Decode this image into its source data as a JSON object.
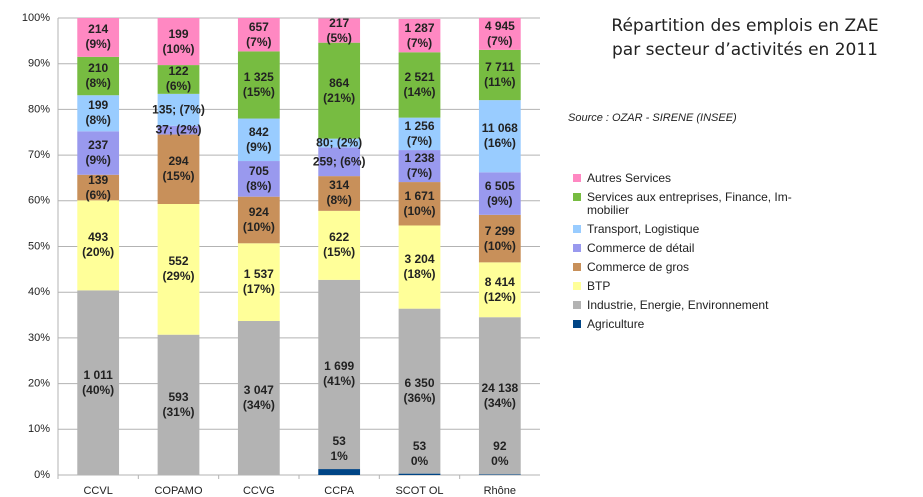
{
  "chart_data": {
    "type": "stacked_bar",
    "title": "Répartition des emplois en ZAE\npar secteur d’activités en 2011",
    "subtitle": "Source : OZAR - SIRENE (INSEE)",
    "categories": [
      "CCVL",
      "COPAMO",
      "CCVG",
      "CCPA",
      "SCOT OL",
      "Rhône"
    ],
    "ylim": [
      0,
      100
    ],
    "yticks": [
      {
        "value": 0,
        "label": "0%"
      },
      {
        "value": 10,
        "label": "10%"
      },
      {
        "value": 20,
        "label": "20%"
      },
      {
        "value": 30,
        "label": "30%"
      },
      {
        "value": 40,
        "label": "40%"
      },
      {
        "value": 50,
        "label": "50%"
      },
      {
        "value": 60,
        "label": "60%"
      },
      {
        "value": 70,
        "label": "70%"
      },
      {
        "value": 80,
        "label": "80%"
      },
      {
        "value": 90,
        "label": "90%"
      },
      {
        "value": 100,
        "label": "100%"
      }
    ],
    "grid": true,
    "legend": "right",
    "series": [
      {
        "name": "Agriculture",
        "color": "#004586",
        "values": [
          null,
          null,
          null,
          1.3,
          0.3,
          0.13
        ],
        "value_labels": [
          null,
          null,
          null,
          "53\n1%",
          "53\n0%",
          "92\n0%"
        ]
      },
      {
        "name": "Industrie, Energie, Environnement",
        "color": "#b3b3b3",
        "values": [
          40.4,
          30.7,
          33.7,
          41.4,
          36.1,
          34.4
        ],
        "value_labels": [
          "1 011\n(40%)",
          "593\n(31%)",
          "3 047\n(34%)",
          "1 699\n(41%)",
          "6 350\n(36%)",
          "24 138\n(34%)"
        ]
      },
      {
        "name": "BTP",
        "color": "#ffff99",
        "values": [
          19.7,
          28.6,
          17.0,
          15.1,
          18.2,
          12.0
        ],
        "value_labels": [
          "493\n(20%)",
          "552\n(29%)",
          "1 537\n(17%)",
          "622\n(15%)",
          "3 204\n(18%)",
          "8 414\n(12%)"
        ]
      },
      {
        "name": "Commerce de gros",
        "color": "#c8905a",
        "values": [
          5.6,
          15.2,
          10.2,
          7.6,
          9.5,
          10.4
        ],
        "value_labels": [
          "139\n(6%)",
          "294\n(15%)",
          "924\n(10%)",
          "314\n(8%)",
          "1 671\n(10%)",
          "7 299\n(10%)"
        ]
      },
      {
        "name": "Commerce de détail",
        "color": "#9999ee",
        "values": [
          9.5,
          1.9,
          7.8,
          6.3,
          7.0,
          9.3
        ],
        "value_labels": [
          "237\n(9%)",
          "37; (2%)",
          "705\n(8%)",
          "259; (6%)",
          "1 238\n(7%)",
          "6 505\n(9%)"
        ]
      },
      {
        "name": "Transport, Logistique",
        "color": "#99ccff",
        "values": [
          7.9,
          7.0,
          9.3,
          1.9,
          7.1,
          15.8
        ],
        "value_labels": [
          "199\n(8%)",
          "135; (7%)",
          "842\n(9%)",
          "80; (2%)",
          "1 256\n(7%)",
          "11 068\n(16%)"
        ]
      },
      {
        "name": "Services aux entreprises, Finance, Im-\nmobilier",
        "color": "#77bc41",
        "values": [
          8.4,
          6.3,
          14.7,
          21.0,
          14.3,
          11.0
        ],
        "value_labels": [
          "210\n(8%)",
          "122\n(6%)",
          "1 325\n(15%)",
          "864\n(21%)",
          "2 521\n(14%)",
          "7 711\n(11%)"
        ]
      },
      {
        "name": "Autres Services",
        "color": "#ff88c2",
        "values": [
          8.5,
          10.3,
          7.3,
          5.3,
          7.3,
          7.0
        ],
        "value_labels": [
          "214\n(9%)",
          "199\n(10%)",
          "657\n(7%)",
          "217\n(5%)",
          "1 287\n(7%)",
          "4 945\n(7%)"
        ]
      }
    ]
  }
}
